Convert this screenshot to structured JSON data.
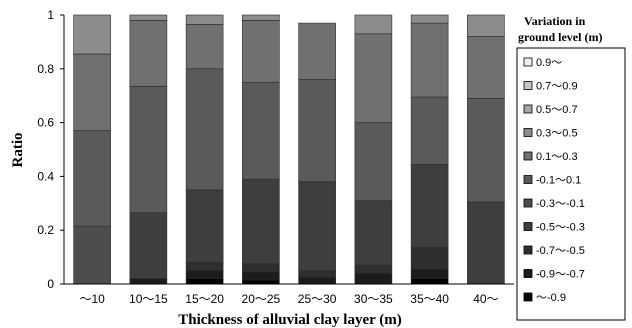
{
  "chart_data": {
    "type": "bar",
    "stacked": true,
    "xlabel": "Thickness of alluvial clay layer  (m)",
    "ylabel": "Ratio",
    "ylim": [
      0,
      1
    ],
    "yticks": [
      "0",
      "0.2",
      "0.4",
      "0.6",
      "0.8",
      "1"
    ],
    "grid": false,
    "legend_position": "right",
    "categories": [
      "～10",
      "10～15",
      "15～20",
      "20～25",
      "25～30",
      "30～35",
      "35～40",
      "40～"
    ],
    "legend_title_line1": "Variation in",
    "legend_title_line2": "ground level (m)",
    "series": [
      {
        "name": "～-0.9",
        "color": "#000000",
        "values": [
          0,
          0,
          0.02,
          0.015,
          0,
          0,
          0.02,
          0
        ]
      },
      {
        "name": "-0.9～-0.7",
        "color": "#1c1c1c",
        "values": [
          0,
          0.02,
          0.03,
          0.03,
          0.025,
          0.04,
          0.035,
          0
        ]
      },
      {
        "name": "-0.7～-0.5",
        "color": "#2e2e2e",
        "values": [
          0,
          0,
          0.03,
          0.03,
          0.025,
          0.03,
          0.08,
          0
        ]
      },
      {
        "name": "-0.5～-0.3",
        "color": "#3e3e3e",
        "values": [
          0,
          0.245,
          0.27,
          0.315,
          0.33,
          0.24,
          0.31,
          0.305
        ]
      },
      {
        "name": "-0.3～-0.1",
        "color": "#4d4d4d",
        "values": [
          0.215,
          0,
          0,
          0,
          0,
          0,
          0,
          0
        ]
      },
      {
        "name": "-0.1～0.1",
        "color": "#5a5a5a",
        "values": [
          0.355,
          0.47,
          0.45,
          0.36,
          0.38,
          0.29,
          0.25,
          0.385
        ]
      },
      {
        "name": "0.1～0.3",
        "color": "#707070",
        "values": [
          0.285,
          0.245,
          0.165,
          0.23,
          0.21,
          0.33,
          0.275,
          0.23
        ]
      },
      {
        "name": "0.3～0.5",
        "color": "#8c8c8c",
        "values": [
          0.145,
          0.02,
          0.035,
          0.02,
          0,
          0.07,
          0.03,
          0.08
        ]
      },
      {
        "name": "0.5～0.7",
        "color": "#a6a6a6",
        "values": [
          0,
          0,
          0,
          0,
          0,
          0,
          0,
          0
        ]
      },
      {
        "name": "0.7～0.9",
        "color": "#c4c4c4",
        "values": [
          0,
          0,
          0,
          0,
          0,
          0,
          0,
          0
        ]
      },
      {
        "name": "0.9～",
        "color": "#efefef",
        "values": [
          0,
          0,
          0,
          0,
          0,
          0,
          0,
          0
        ]
      }
    ]
  }
}
